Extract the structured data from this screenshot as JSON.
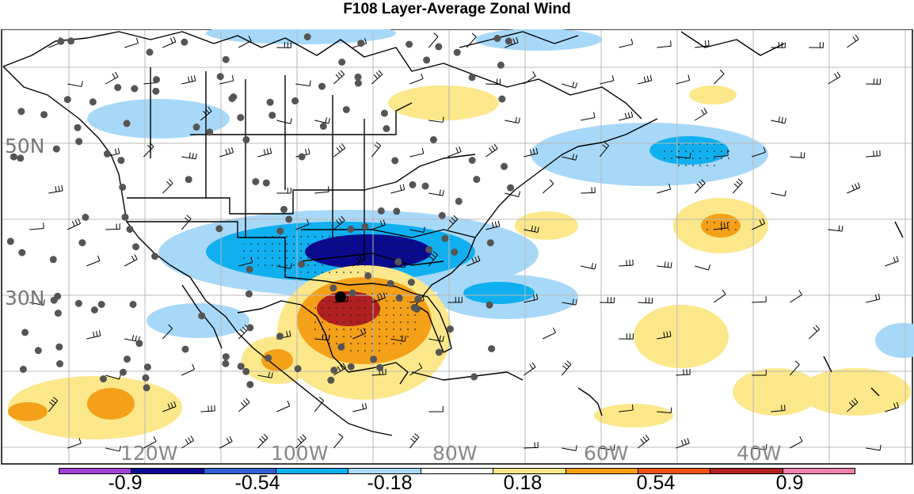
{
  "title": "F108 Layer-Average Zonal Wind",
  "lat_labels": [
    "50N",
    "30N"
  ],
  "lon_labels": [
    "120W",
    "100W",
    "80W",
    "60W",
    "40W"
  ],
  "colorbar": {
    "colors": [
      "#a040d8",
      "#0a0a90",
      "#3060d0",
      "#10b0f0",
      "#a8d8f8",
      "#ffffff",
      "#fce88a",
      "#f4a018",
      "#f05010",
      "#b02020",
      "#f080b0"
    ],
    "tick_labels": [
      "-0.9",
      "-0.54",
      "-0.18",
      "0.18",
      "0.54",
      "0.9"
    ]
  },
  "palette": {
    "strong_negative": "#0a0a90",
    "negative": "#10b0f0",
    "weak_negative": "#a8d8f8",
    "weak_positive": "#fce88a",
    "positive": "#f4a018",
    "strong_positive": "#b02020",
    "coastline": "#000000",
    "stations": "#555555"
  }
}
